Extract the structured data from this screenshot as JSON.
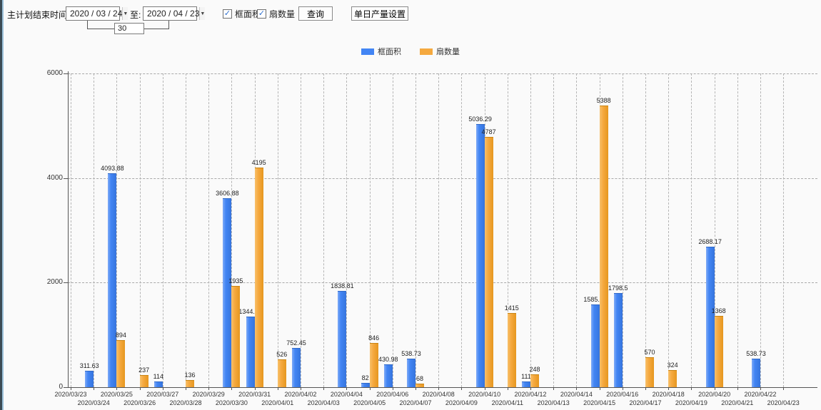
{
  "toolbar": {
    "plan_end_label": "主计划结束时间:",
    "date_from": "2020 / 03 / 24",
    "to_label": "至:",
    "date_to": "2020 / 04 / 23",
    "days_value": "30",
    "checkbox_area_label": "框面积",
    "checkbox_area_checked": "✓",
    "checkbox_fan_label": "扇数量",
    "checkbox_fan_checked": "✓",
    "query_button": "查询",
    "daily_output_button": "单日产量设置",
    "dropdown_glyph": "▼"
  },
  "chart_data": {
    "type": "bar",
    "title": "",
    "xlabel": "",
    "ylabel": "",
    "ylim": [
      0,
      6000
    ],
    "yticks": [
      0,
      2000,
      4000,
      6000
    ],
    "grid": true,
    "legend_position": "top",
    "categories": [
      "2020/03/23",
      "2020/03/24",
      "2020/03/25",
      "2020/03/26",
      "2020/03/27",
      "2020/03/28",
      "2020/03/29",
      "2020/03/30",
      "2020/03/31",
      "2020/04/01",
      "2020/04/02",
      "2020/04/03",
      "2020/04/04",
      "2020/04/05",
      "2020/04/06",
      "2020/04/07",
      "2020/04/08",
      "2020/04/09",
      "2020/04/10",
      "2020/04/11",
      "2020/04/12",
      "2020/04/13",
      "2020/04/14",
      "2020/04/15",
      "2020/04/16",
      "2020/04/17",
      "2020/04/18",
      "2020/04/19",
      "2020/04/20",
      "2020/04/21",
      "2020/04/22",
      "2020/04/23"
    ],
    "series": [
      {
        "name": "框面积",
        "color": "#4285f4",
        "values": [
          null,
          311.63,
          4093.88,
          null,
          114,
          null,
          null,
          3606.88,
          1344.95,
          null,
          752.45,
          null,
          1838.81,
          82,
          430.98,
          538.73,
          null,
          null,
          5036.29,
          null,
          111,
          null,
          null,
          1585.96,
          1798.5,
          null,
          null,
          null,
          2688.17,
          null,
          538.73,
          null
        ]
      },
      {
        "name": "扇数量",
        "color": "#f5a93f",
        "values": [
          null,
          null,
          894,
          237,
          null,
          136,
          null,
          1935,
          4195,
          526,
          null,
          null,
          null,
          846,
          null,
          68,
          null,
          null,
          4787,
          1415,
          248,
          null,
          null,
          5388,
          null,
          570,
          324,
          null,
          1368,
          null,
          null,
          null
        ]
      }
    ]
  }
}
